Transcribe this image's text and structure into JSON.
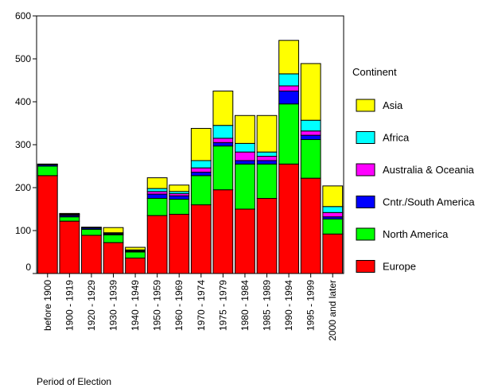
{
  "chart_data": {
    "type": "bar",
    "stacked": true,
    "xlabel": "Period of Election",
    "ylabel": "",
    "ylim": [
      0,
      600
    ],
    "yticks": [
      0,
      100,
      200,
      300,
      400,
      500,
      600
    ],
    "grid": false,
    "legend_title": "Continent",
    "legend_position": "right",
    "categories": [
      "before 1900",
      "1900 - 1919",
      "1920 - 1929",
      "1930 - 1939",
      "1940 - 1949",
      "1950 - 1959",
      "1960 - 1969",
      "1970 - 1974",
      "1975 - 1979",
      "1980 - 1984",
      "1985 - 1989",
      "1990 - 1994",
      "1995 - 1999",
      "2000 and later"
    ],
    "series": [
      {
        "name": "Europe",
        "color": "#ff0000",
        "values": [
          228,
          122,
          89,
          72,
          36,
          135,
          138,
          160,
          195,
          150,
          175,
          255,
          222,
          92
        ]
      },
      {
        "name": "North America",
        "color": "#00ff00",
        "values": [
          22,
          10,
          14,
          18,
          14,
          40,
          35,
          68,
          102,
          105,
          80,
          140,
          90,
          35
        ]
      },
      {
        "name": "Cntr./South America",
        "color": "#0000ff",
        "values": [
          3,
          3,
          3,
          2,
          2,
          10,
          8,
          8,
          8,
          8,
          8,
          30,
          10,
          5
        ]
      },
      {
        "name": "Australia & Oceania",
        "color": "#ff00ff",
        "values": [
          1,
          2,
          1,
          1,
          1,
          6,
          5,
          10,
          10,
          20,
          10,
          12,
          10,
          10
        ]
      },
      {
        "name": "Africa",
        "color": "#00ffff",
        "values": [
          1,
          1,
          1,
          2,
          2,
          7,
          5,
          17,
          30,
          20,
          10,
          28,
          25,
          14
        ]
      },
      {
        "name": "Asia",
        "color": "#ffff00",
        "values": [
          0,
          2,
          0,
          12,
          6,
          25,
          15,
          75,
          80,
          65,
          85,
          78,
          132,
          48
        ]
      }
    ],
    "legend_order": [
      "Asia",
      "Africa",
      "Australia & Oceania",
      "Cntr./South America",
      "North America",
      "Europe"
    ]
  }
}
